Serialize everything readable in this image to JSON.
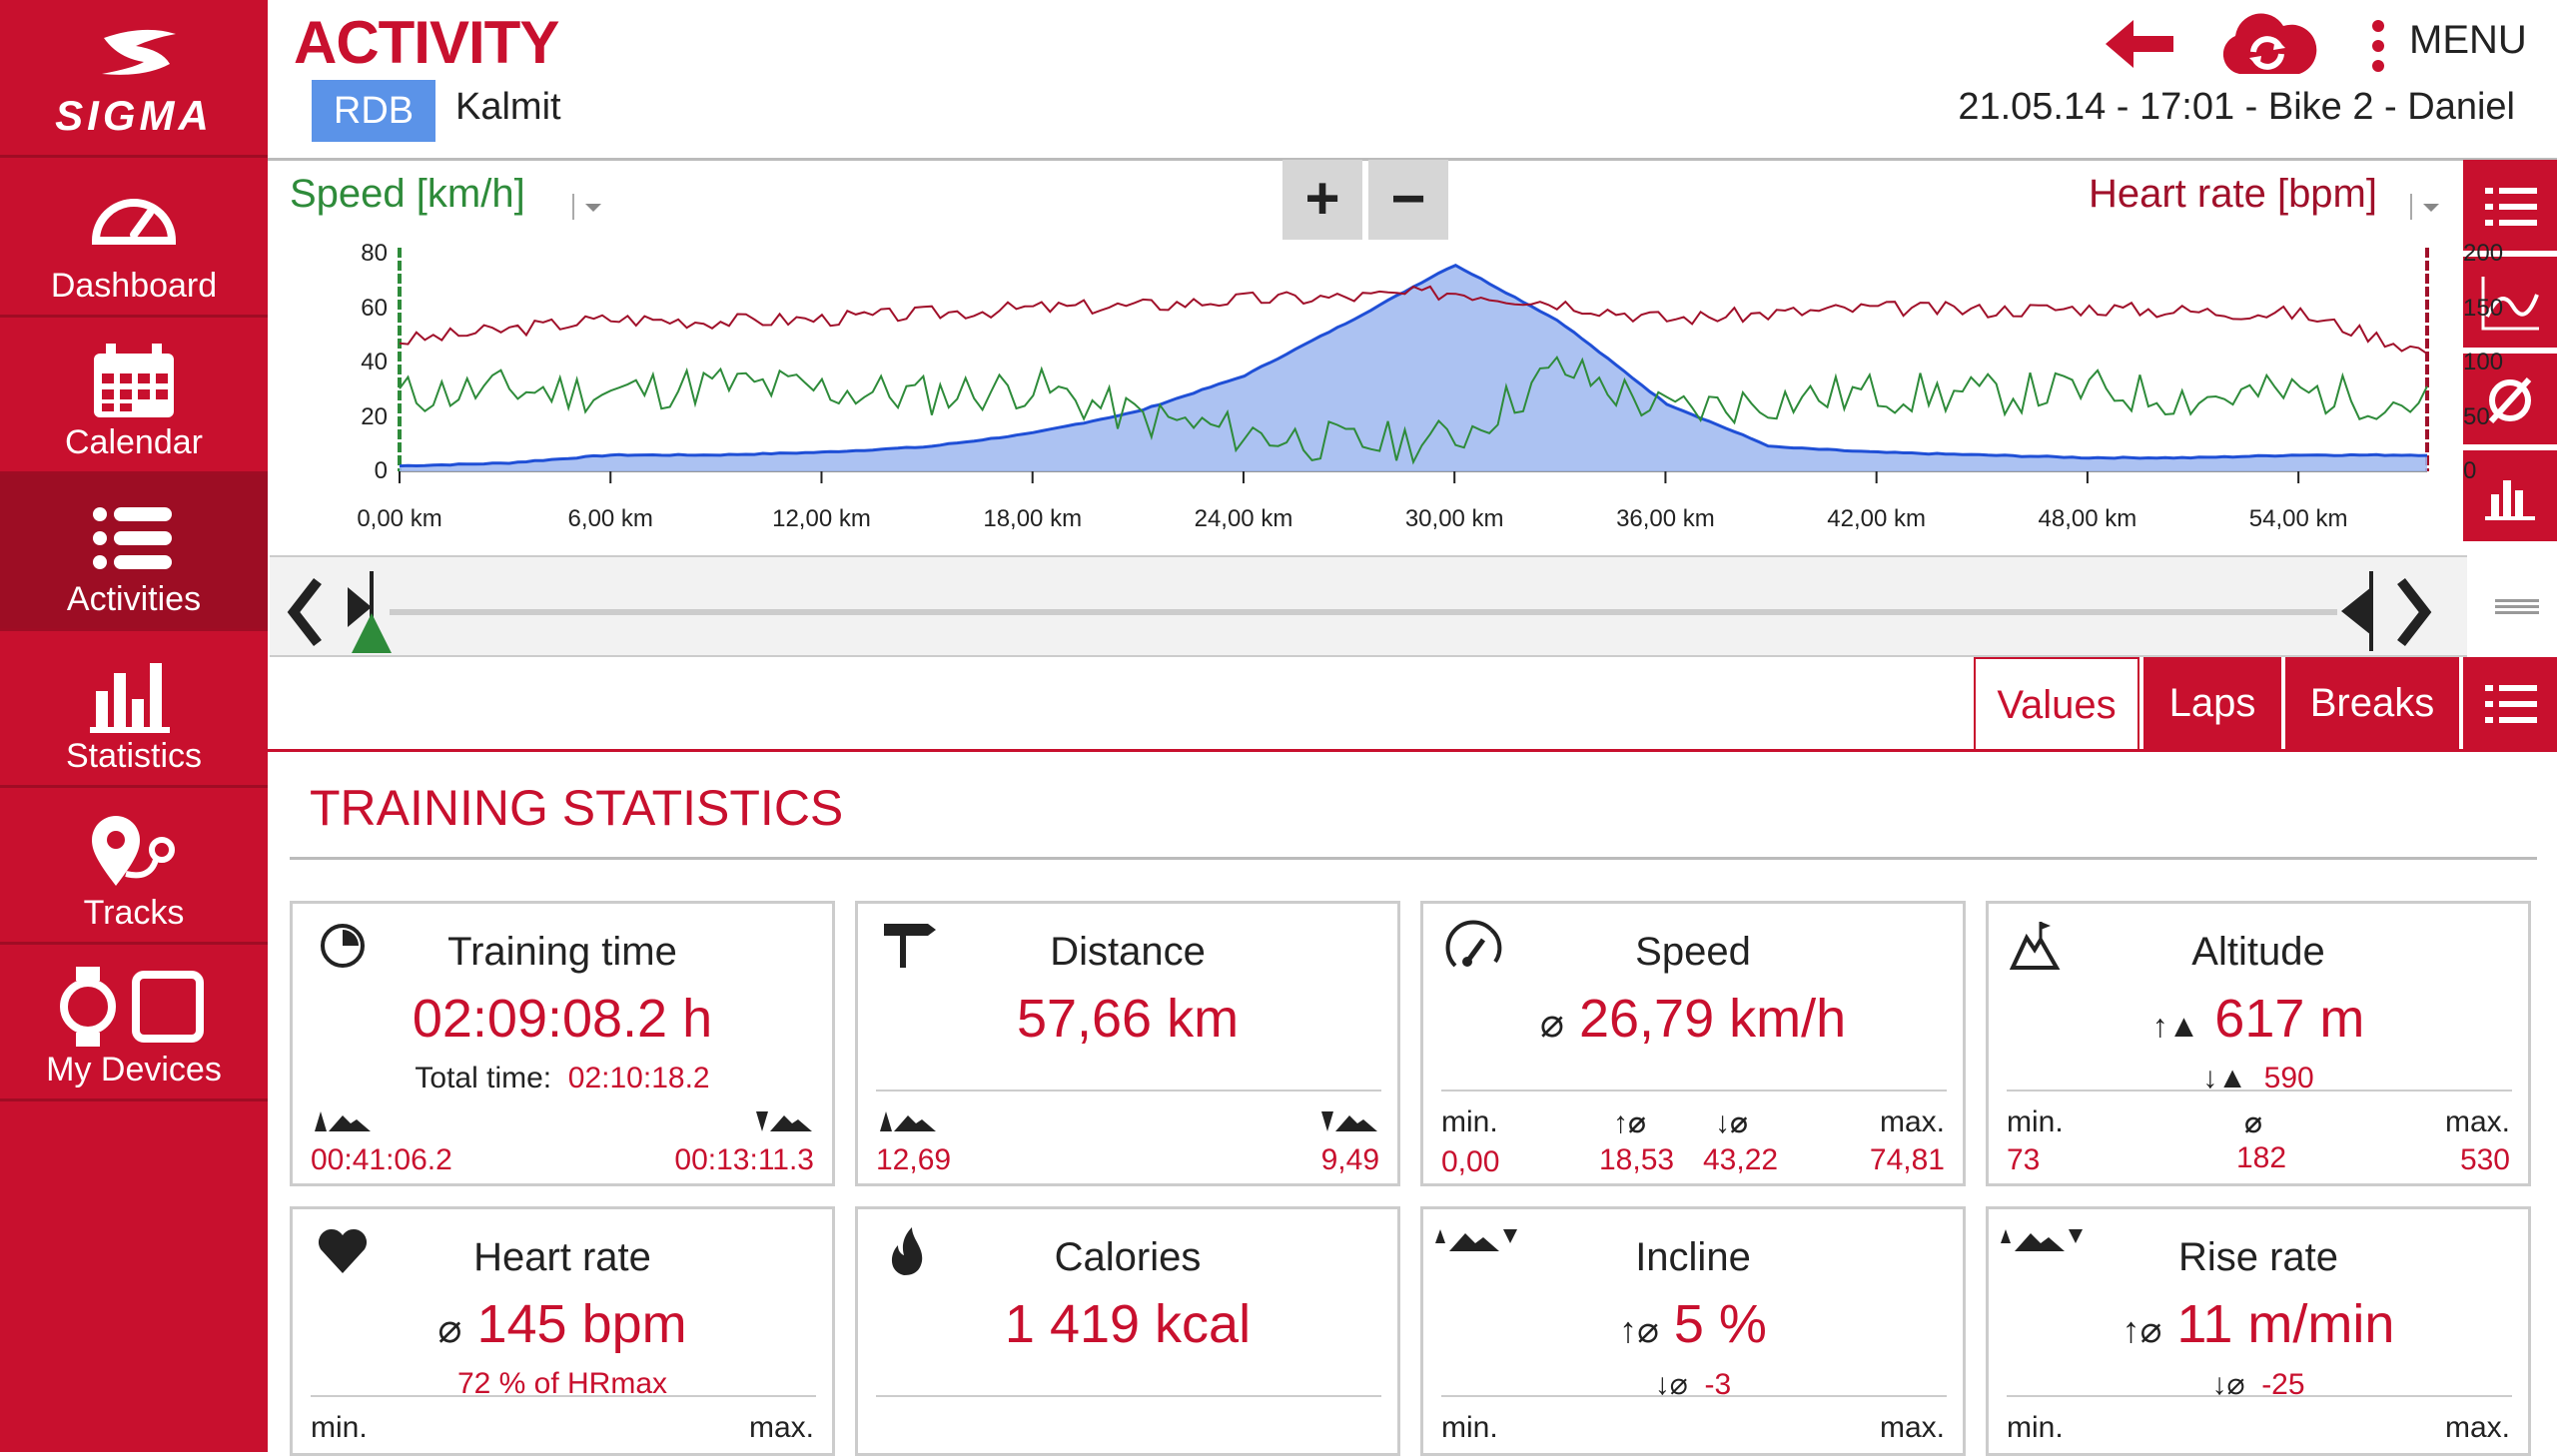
{
  "app": {
    "brand": "SIGMA",
    "title": "ACTIVITY",
    "tag": "RDB",
    "location": "Kalmit",
    "meta": "21.05.14  -  17:01  -  Bike 2  -  Daniel",
    "menu_label": "MENU"
  },
  "sidebar": {
    "items": [
      {
        "label": "Dashboard",
        "icon": "speedometer-icon"
      },
      {
        "label": "Calendar",
        "icon": "calendar-icon"
      },
      {
        "label": "Activities",
        "icon": "list-icon"
      },
      {
        "label": "Statistics",
        "icon": "bar-chart-icon"
      },
      {
        "label": "Tracks",
        "icon": "route-icon"
      },
      {
        "label": "My Devices",
        "icon": "devices-icon"
      }
    ],
    "active": "Activities"
  },
  "chart": {
    "left_axis_title": "Speed [km/h]",
    "right_axis_title": "Heart rate [bpm]",
    "left_ticks": [
      "80",
      "60",
      "40",
      "20",
      "0"
    ],
    "right_ticks": [
      "200",
      "150",
      "100",
      "50",
      "0"
    ],
    "x_ticks": [
      "0,00 km",
      "6,00 km",
      "12,00 km",
      "18,00 km",
      "24,00 km",
      "30,00 km",
      "36,00 km",
      "42,00 km",
      "48,00 km",
      "54,00 km"
    ],
    "zoom_in": "+",
    "zoom_out": "−",
    "colors": {
      "speed": "#2e8b3a",
      "heart": "#a0102a",
      "altitude_fill": "#9db7f0",
      "altitude_line": "#1f4fd6"
    }
  },
  "chart_data": {
    "type": "line",
    "x": [
      0,
      3,
      6,
      9,
      12,
      15,
      18,
      21,
      24,
      27,
      30,
      33,
      36,
      39,
      42,
      45,
      48,
      51,
      54,
      57.66
    ],
    "series": [
      {
        "name": "Speed [km/h]",
        "values": [
          28,
          30,
          29,
          32,
          30,
          28,
          31,
          20,
          14,
          10,
          12,
          38,
          22,
          26,
          29,
          28,
          30,
          27,
          29,
          25
        ]
      },
      {
        "name": "Heart rate [bpm]",
        "values": [
          120,
          130,
          140,
          138,
          140,
          145,
          150,
          152,
          158,
          160,
          165,
          155,
          140,
          145,
          150,
          148,
          150,
          147,
          145,
          110
        ]
      },
      {
        "name": "Altitude",
        "values": [
          2,
          3,
          6,
          6,
          7,
          9,
          14,
          22,
          35,
          55,
          76,
          55,
          25,
          9,
          7,
          6,
          5,
          5,
          6,
          6
        ]
      }
    ],
    "xlim": [
      0,
      57.66
    ],
    "ylim_left": [
      0,
      80
    ],
    "ylim_right": [
      0,
      200
    ]
  },
  "tabs": [
    "Values",
    "Laps",
    "Breaks"
  ],
  "section_title": "TRAINING STATISTICS",
  "cards": {
    "training_time": {
      "title": "Training time",
      "value": "02:09:08.2 h",
      "sub_label": "Total time:",
      "sub_value": "02:10:18.2",
      "left": "00:41:06.2",
      "right": "00:13:11.3"
    },
    "distance": {
      "title": "Distance",
      "value": "57,66 km",
      "left": "12,69",
      "right": "9,49"
    },
    "speed": {
      "title": "Speed",
      "value": "26,79 km/h",
      "min_label": "min.",
      "max_label": "max.",
      "min": "0,00",
      "up": "18,53",
      "down": "43,22",
      "max": "74,81"
    },
    "altitude": {
      "title": "Altitude",
      "value": "617 m",
      "sub": "590",
      "min_label": "min.",
      "max_label": "max.",
      "min": "73",
      "avg": "182",
      "max": "530"
    },
    "heart_rate": {
      "title": "Heart rate",
      "value": "145 bpm",
      "sub": "72 % of HRmax",
      "min_label": "min.",
      "max_label": "max."
    },
    "calories": {
      "title": "Calories",
      "value": "1 419 kcal"
    },
    "incline": {
      "title": "Incline",
      "value": "5 %",
      "sub": "-3",
      "max_label": "max.",
      "min_label": "min."
    },
    "rise_rate": {
      "title": "Rise rate",
      "value": "11 m/min",
      "sub": "-25",
      "min_label": "min.",
      "max_label": "max."
    }
  }
}
